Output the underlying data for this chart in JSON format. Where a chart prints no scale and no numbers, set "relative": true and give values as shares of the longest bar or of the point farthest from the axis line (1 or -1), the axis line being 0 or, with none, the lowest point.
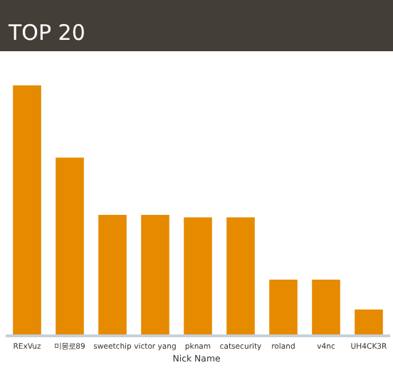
{
  "chart_data": {
    "type": "bar",
    "title": "TOP 20",
    "xlabel": "Nick Name",
    "relative": true,
    "categories": [
      "RExVuz",
      "미몽로89",
      "sweetchip",
      "victor yang",
      "pknam",
      "catsecurity",
      "roland",
      "v4nc",
      "UH4CK3R"
    ],
    "values": [
      1,
      0.71,
      0.48,
      0.48,
      0.47,
      0.47,
      0.22,
      0.22,
      0.1
    ],
    "color": "#e68a00"
  }
}
